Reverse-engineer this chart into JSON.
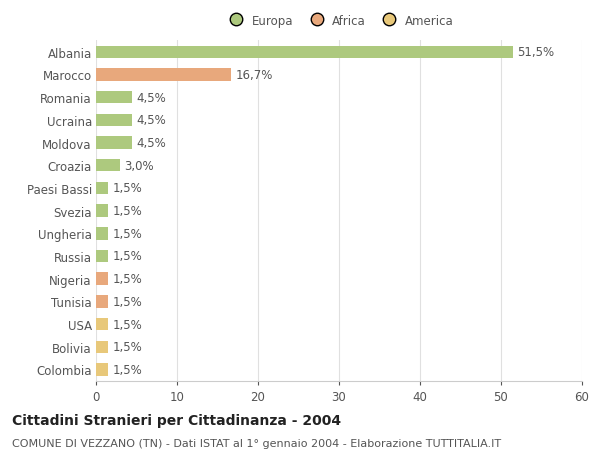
{
  "categories": [
    "Albania",
    "Marocco",
    "Romania",
    "Ucraina",
    "Moldova",
    "Croazia",
    "Paesi Bassi",
    "Svezia",
    "Ungheria",
    "Russia",
    "Nigeria",
    "Tunisia",
    "USA",
    "Bolivia",
    "Colombia"
  ],
  "values": [
    51.5,
    16.7,
    4.5,
    4.5,
    4.5,
    3.0,
    1.5,
    1.5,
    1.5,
    1.5,
    1.5,
    1.5,
    1.5,
    1.5,
    1.5
  ],
  "labels": [
    "51,5%",
    "16,7%",
    "4,5%",
    "4,5%",
    "4,5%",
    "3,0%",
    "1,5%",
    "1,5%",
    "1,5%",
    "1,5%",
    "1,5%",
    "1,5%",
    "1,5%",
    "1,5%",
    "1,5%"
  ],
  "colors": [
    "#adc97e",
    "#e8a87c",
    "#adc97e",
    "#adc97e",
    "#adc97e",
    "#adc97e",
    "#adc97e",
    "#adc97e",
    "#adc97e",
    "#adc97e",
    "#e8a87c",
    "#e8a87c",
    "#e8c87a",
    "#e8c87a",
    "#e8c87a"
  ],
  "legend_labels": [
    "Europa",
    "Africa",
    "America"
  ],
  "legend_colors": [
    "#adc97e",
    "#e8a87c",
    "#e8c87a"
  ],
  "title": "Cittadini Stranieri per Cittadinanza - 2004",
  "subtitle": "COMUNE DI VEZZANO (TN) - Dati ISTAT al 1° gennaio 2004 - Elaborazione TUTTITALIA.IT",
  "xlim": [
    0,
    60
  ],
  "xticks": [
    0,
    10,
    20,
    30,
    40,
    50,
    60
  ],
  "background_color": "#ffffff",
  "grid_color": "#e0e0e0",
  "bar_height": 0.55,
  "label_fontsize": 8.5,
  "tick_fontsize": 8.5,
  "title_fontsize": 10,
  "subtitle_fontsize": 8
}
